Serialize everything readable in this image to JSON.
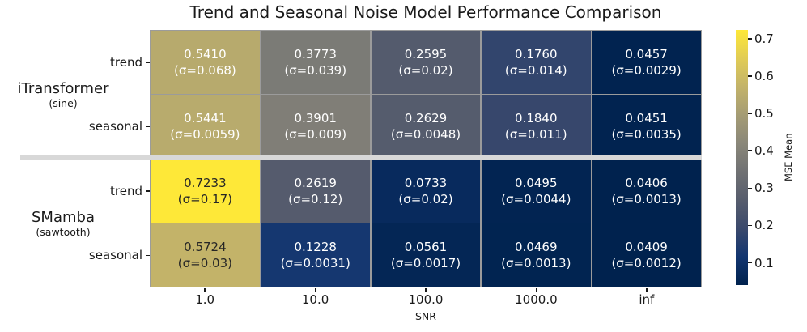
{
  "chart_data": {
    "type": "heatmap",
    "title": "Trend and Seasonal Noise Model Performance Comparison",
    "xlabel": "SNR",
    "x_tick_labels": [
      "1.0",
      "10.0",
      "100.0",
      "1000.0",
      "inf"
    ],
    "row_groups": [
      {
        "model": "iTransformer",
        "variant": "(sine)",
        "rows": [
          "trend",
          "seasonal"
        ]
      },
      {
        "model": "SMamba",
        "variant": "(sawtooth)",
        "rows": [
          "trend",
          "seasonal"
        ]
      }
    ],
    "values": [
      [
        "0.5410",
        "0.3773",
        "0.2595",
        "0.1760",
        "0.0457"
      ],
      [
        "0.5441",
        "0.3901",
        "0.2629",
        "0.1840",
        "0.0451"
      ],
      [
        "0.7233",
        "0.2619",
        "0.0733",
        "0.0495",
        "0.0406"
      ],
      [
        "0.5724",
        "0.1228",
        "0.0561",
        "0.0469",
        "0.0409"
      ]
    ],
    "stds": [
      [
        "0.068",
        "0.039",
        "0.02",
        "0.014",
        "0.0029"
      ],
      [
        "0.0059",
        "0.009",
        "0.0048",
        "0.011",
        "0.0035"
      ],
      [
        "0.17",
        "0.12",
        "0.02",
        "0.0044",
        "0.0013"
      ],
      [
        "0.03",
        "0.0031",
        "0.0017",
        "0.0013",
        "0.0012"
      ]
    ],
    "annotation_format": "value\n(σ=std)",
    "colorbar": {
      "label": "MSE Mean",
      "tick_labels": [
        "0.7",
        "0.6",
        "0.5",
        "0.4",
        "0.3",
        "0.2",
        "0.1"
      ],
      "vmin": 0.0406,
      "vmax": 0.7233,
      "colormap": "cividis",
      "stops": [
        "#00224e",
        "#123570",
        "#3b496c",
        "#575d6d",
        "#707173",
        "#8a8779",
        "#a59c74",
        "#c3b369",
        "#e1cc55",
        "#fee838"
      ]
    },
    "text_colors": {
      "light": "#ffffff",
      "dark": "#262626"
    },
    "divider_color": "#d8d8d8"
  }
}
